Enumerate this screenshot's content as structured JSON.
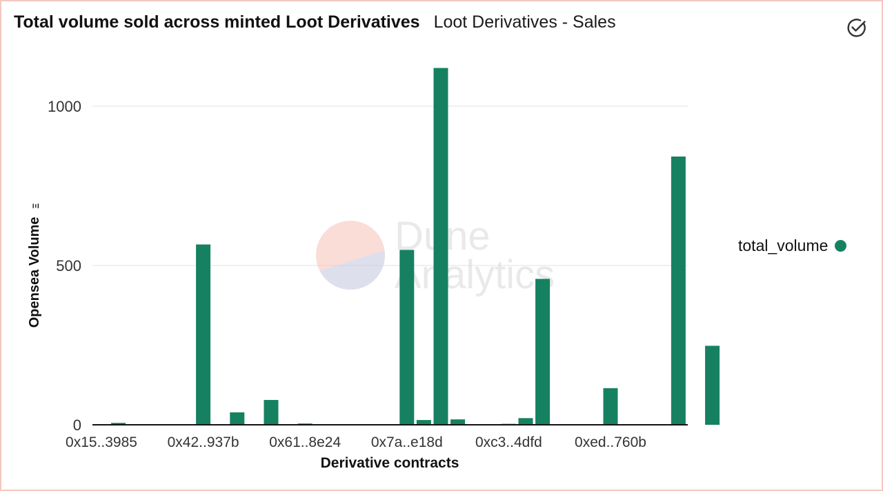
{
  "header": {
    "title": "Total volume sold across minted Loot Derivatives",
    "subtitle": "Loot Derivatives - Sales"
  },
  "icons": {
    "status": "check-circle-icon"
  },
  "colors": {
    "bar": "#168160",
    "grid": "#ececec",
    "axis": "#111111",
    "frame": "#f4c7bf"
  },
  "watermark": {
    "line1": "Dune",
    "line2": "Analytics"
  },
  "legend": {
    "label": "total_volume"
  },
  "chart_data": {
    "type": "bar",
    "title": "Total volume sold across minted Loot Derivatives",
    "xlabel": "Derivative contracts",
    "ylabel": "Opensea Volume",
    "ylabel_unit": "Ξ",
    "ylim": [
      0,
      1120
    ],
    "yticks": [
      0,
      500,
      1000
    ],
    "grid": true,
    "legend_position": "right",
    "tick_labels": [
      "0x15..3985",
      "0x42..937b",
      "0x61..8e24",
      "0x7a..e18d",
      "0xc3..4dfd",
      "0xed..760b"
    ],
    "tick_indices": [
      0,
      6,
      12,
      18,
      24,
      30
    ],
    "series": [
      {
        "name": "total_volume",
        "values": [
          2,
          6,
          1,
          0,
          0,
          2,
          566,
          0,
          39,
          0,
          78,
          0,
          4,
          0,
          1,
          0,
          1,
          0,
          549,
          15,
          1120,
          17,
          1,
          0,
          3,
          21,
          458,
          0,
          0,
          0,
          115,
          0,
          1,
          1,
          842,
          0,
          248
        ]
      }
    ]
  }
}
